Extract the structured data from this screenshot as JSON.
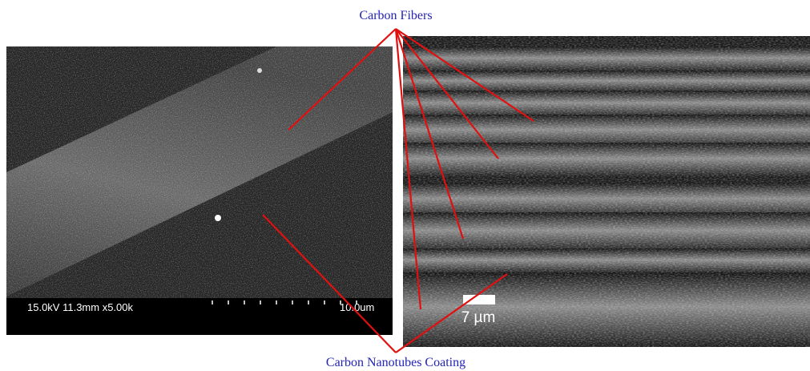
{
  "labels": {
    "top": "Carbon Fibers",
    "bottom": "Carbon Nanotubes Coating"
  },
  "left_image": {
    "info": "15.0kV 11.3mm x5.00k",
    "scale": "10.0um"
  },
  "right_image": {
    "scale": "7 µm"
  }
}
